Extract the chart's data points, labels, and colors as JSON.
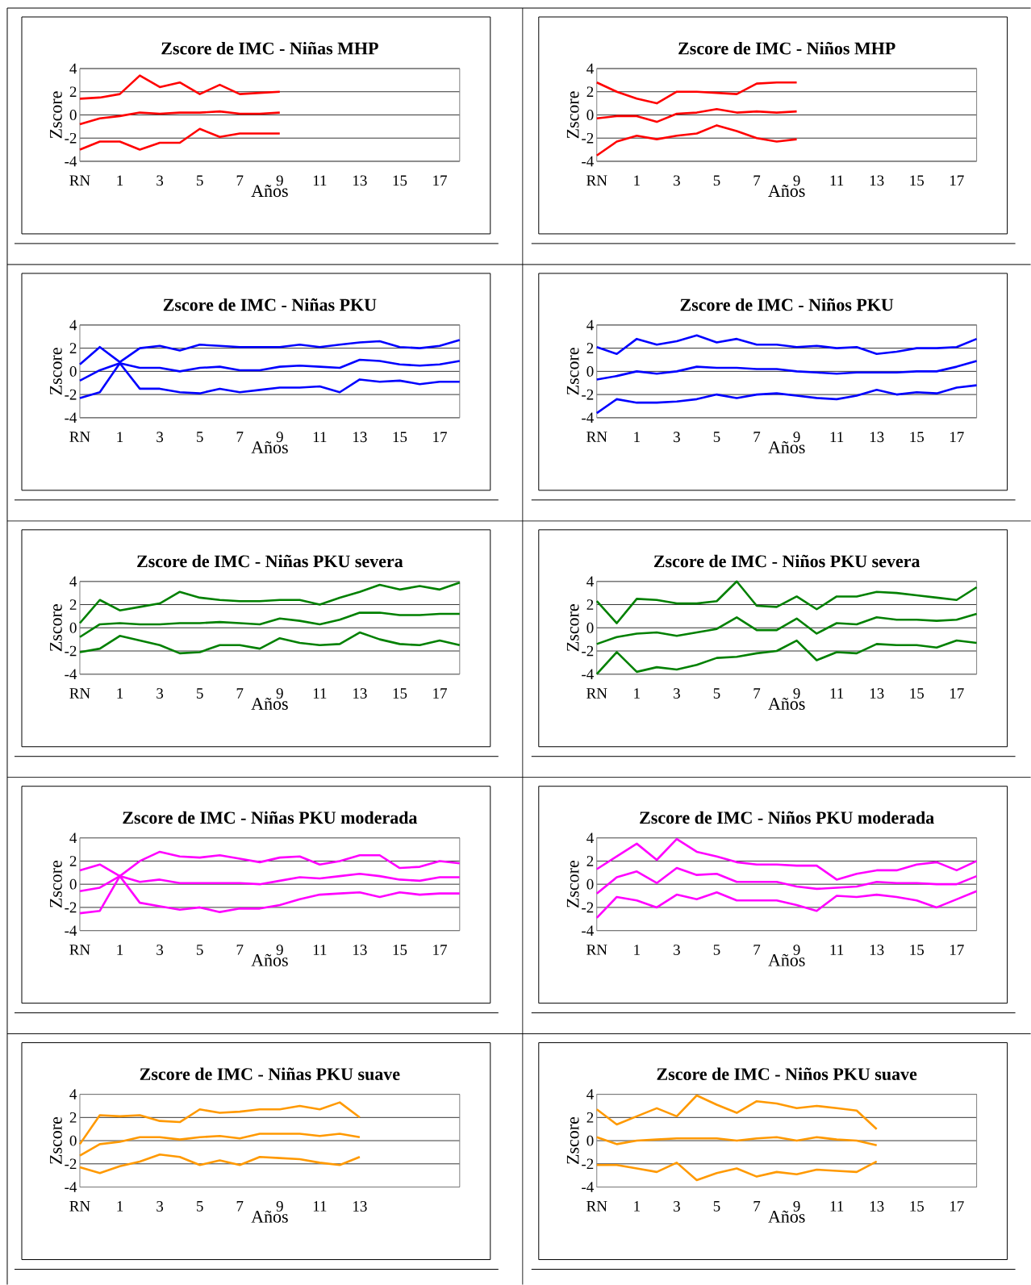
{
  "chart_data": [
    {
      "type": "line",
      "title": "Zscore de IMC - Niñas MHP",
      "xlabel": "Años",
      "ylabel": "Zscore",
      "categories": [
        "RN",
        null,
        "1",
        null,
        "3",
        null,
        "5",
        null,
        "7",
        null,
        "9",
        null,
        "11",
        null,
        "13",
        null,
        "15",
        null,
        "17",
        null
      ],
      "ylim": [
        -4,
        4
      ],
      "yticks": [
        -4,
        -2,
        0,
        2,
        4
      ],
      "grid": "y",
      "marker": "none",
      "line_style": "solid",
      "series": [
        {
          "color": "#ff0000",
          "values": [
            1.4,
            1.5,
            1.8,
            3.4,
            2.4,
            2.8,
            1.8,
            2.6,
            1.8,
            1.9,
            2.0,
            null,
            null,
            null,
            null,
            null,
            null,
            null,
            null,
            null
          ]
        },
        {
          "color": "#ff0000",
          "values": [
            -0.8,
            -0.3,
            -0.1,
            0.2,
            0.1,
            0.2,
            0.2,
            0.3,
            0.1,
            0.1,
            0.2,
            null,
            null,
            null,
            null,
            null,
            null,
            null,
            null,
            null
          ]
        },
        {
          "color": "#ff0000",
          "values": [
            -3.0,
            -2.3,
            -2.3,
            -3.0,
            -2.4,
            -2.4,
            -1.2,
            -1.9,
            -1.6,
            -1.6,
            -1.6,
            null,
            null,
            null,
            null,
            null,
            null,
            null,
            null,
            null
          ]
        }
      ]
    },
    {
      "type": "line",
      "title": "Zscore de IMC - Niños MHP",
      "xlabel": "Años",
      "ylabel": "Zscore",
      "categories": [
        "RN",
        null,
        "1",
        null,
        "3",
        null,
        "5",
        null,
        "7",
        null,
        "9",
        null,
        "11",
        null,
        "13",
        null,
        "15",
        null,
        "17",
        null
      ],
      "ylim": [
        -4,
        4
      ],
      "yticks": [
        -4,
        -2,
        0,
        2,
        4
      ],
      "grid": "y",
      "marker": "none",
      "line_style": "solid",
      "series": [
        {
          "color": "#ff0000",
          "values": [
            2.8,
            2.0,
            1.4,
            1.0,
            2.0,
            2.0,
            1.9,
            1.8,
            2.7,
            2.8,
            2.8,
            null,
            null,
            null,
            null,
            null,
            null,
            null,
            null,
            null
          ]
        },
        {
          "color": "#ff0000",
          "values": [
            -0.3,
            -0.1,
            -0.1,
            -0.6,
            0.1,
            0.2,
            0.5,
            0.2,
            0.3,
            0.2,
            0.3,
            null,
            null,
            null,
            null,
            null,
            null,
            null,
            null,
            null
          ]
        },
        {
          "color": "#ff0000",
          "values": [
            -3.5,
            -2.3,
            -1.8,
            -2.1,
            -1.8,
            -1.6,
            -0.9,
            -1.4,
            -2.0,
            -2.3,
            -2.1,
            null,
            null,
            null,
            null,
            null,
            null,
            null,
            null,
            null
          ]
        }
      ]
    },
    {
      "type": "line",
      "title": "Zscore de IMC - Niñas PKU",
      "xlabel": "Años",
      "ylabel": "Zscore",
      "categories": [
        "RN",
        null,
        "1",
        null,
        "3",
        null,
        "5",
        null,
        "7",
        null,
        "9",
        null,
        "11",
        null,
        "13",
        null,
        "15",
        null,
        "17",
        null
      ],
      "ylim": [
        -4,
        4
      ],
      "yticks": [
        -4,
        -2,
        0,
        2,
        4
      ],
      "grid": "y",
      "marker": "none",
      "line_style": "solid",
      "series": [
        {
          "color": "#0000ff",
          "values": [
            0.6,
            2.1,
            0.8,
            2.0,
            2.2,
            1.8,
            2.3,
            2.2,
            2.1,
            2.1,
            2.1,
            2.3,
            2.1,
            2.3,
            2.5,
            2.6,
            2.1,
            2.0,
            2.2,
            2.7
          ]
        },
        {
          "color": "#0000ff",
          "values": [
            -0.8,
            0.1,
            0.7,
            0.3,
            0.3,
            0.0,
            0.3,
            0.4,
            0.1,
            0.1,
            0.4,
            0.5,
            0.4,
            0.3,
            1.0,
            0.9,
            0.6,
            0.5,
            0.6,
            0.9
          ]
        },
        {
          "color": "#0000ff",
          "values": [
            -2.3,
            -1.8,
            0.7,
            -1.5,
            -1.5,
            -1.8,
            -1.9,
            -1.5,
            -1.8,
            -1.6,
            -1.4,
            -1.4,
            -1.3,
            -1.8,
            -0.7,
            -0.9,
            -0.8,
            -1.1,
            -0.9,
            -0.9
          ]
        }
      ]
    },
    {
      "type": "line",
      "title": "Zscore de IMC - Niños PKU",
      "xlabel": "Años",
      "ylabel": "Zscore",
      "categories": [
        "RN",
        null,
        "1",
        null,
        "3",
        null,
        "5",
        null,
        "7",
        null,
        "9",
        null,
        "11",
        null,
        "13",
        null,
        "15",
        null,
        "17",
        null
      ],
      "ylim": [
        -4,
        4
      ],
      "yticks": [
        -4,
        -2,
        0,
        2,
        4
      ],
      "grid": "y",
      "marker": "none",
      "line_style": "solid",
      "series": [
        {
          "color": "#0000ff",
          "values": [
            2.1,
            1.5,
            2.8,
            2.3,
            2.6,
            3.1,
            2.5,
            2.8,
            2.3,
            2.3,
            2.1,
            2.2,
            2.0,
            2.1,
            1.5,
            1.7,
            2.0,
            2.0,
            2.1,
            2.8
          ]
        },
        {
          "color": "#0000ff",
          "values": [
            -0.7,
            -0.4,
            0.0,
            -0.2,
            0.0,
            0.4,
            0.3,
            0.3,
            0.2,
            0.2,
            0.0,
            -0.1,
            -0.2,
            -0.1,
            -0.1,
            -0.1,
            0.0,
            0.0,
            0.4,
            0.9
          ]
        },
        {
          "color": "#0000ff",
          "values": [
            -3.6,
            -2.4,
            -2.7,
            -2.7,
            -2.6,
            -2.4,
            -2.0,
            -2.3,
            -2.0,
            -1.9,
            -2.1,
            -2.3,
            -2.4,
            -2.1,
            -1.6,
            -2.0,
            -1.8,
            -1.9,
            -1.4,
            -1.2
          ]
        }
      ]
    },
    {
      "type": "line",
      "title": "Zscore de IMC - Niñas PKU severa",
      "xlabel": "Años",
      "ylabel": "Zscore",
      "categories": [
        "RN",
        null,
        "1",
        null,
        "3",
        null,
        "5",
        null,
        "7",
        null,
        "9",
        null,
        "11",
        null,
        "13",
        null,
        "15",
        null,
        "17",
        null
      ],
      "ylim": [
        -4,
        4
      ],
      "yticks": [
        -4,
        -2,
        0,
        2,
        4
      ],
      "grid": "y",
      "marker": "none",
      "line_style": "solid",
      "series": [
        {
          "color": "#008000",
          "values": [
            0.4,
            2.4,
            1.5,
            1.8,
            2.1,
            3.1,
            2.6,
            2.4,
            2.3,
            2.3,
            2.4,
            2.4,
            2.0,
            2.6,
            3.1,
            3.7,
            3.3,
            3.6,
            3.3,
            3.9
          ]
        },
        {
          "color": "#008000",
          "values": [
            -0.8,
            0.3,
            0.4,
            0.3,
            0.3,
            0.4,
            0.4,
            0.5,
            0.4,
            0.3,
            0.8,
            0.6,
            0.3,
            0.7,
            1.3,
            1.3,
            1.1,
            1.1,
            1.2,
            1.2
          ]
        },
        {
          "color": "#008000",
          "values": [
            -2.1,
            -1.8,
            -0.7,
            -1.1,
            -1.5,
            -2.2,
            -2.1,
            -1.5,
            -1.5,
            -1.8,
            -0.9,
            -1.3,
            -1.5,
            -1.4,
            -0.4,
            -1.0,
            -1.4,
            -1.5,
            -1.1,
            -1.5
          ]
        }
      ]
    },
    {
      "type": "line",
      "title": "Zscore de IMC - Niños PKU severa",
      "xlabel": "Años",
      "ylabel": "Zscore",
      "categories": [
        "RN",
        null,
        "1",
        null,
        "3",
        null,
        "5",
        null,
        "7",
        null,
        "9",
        null,
        "11",
        null,
        "13",
        null,
        "15",
        null,
        "17",
        null
      ],
      "ylim": [
        -4,
        4
      ],
      "yticks": [
        -4,
        -2,
        0,
        2,
        4
      ],
      "grid": "y",
      "marker": "none",
      "line_style": "solid",
      "series": [
        {
          "color": "#008000",
          "values": [
            2.3,
            0.4,
            2.5,
            2.4,
            2.1,
            2.1,
            2.3,
            4.0,
            1.9,
            1.8,
            2.7,
            1.6,
            2.7,
            2.7,
            3.1,
            3.0,
            2.8,
            2.6,
            2.4,
            3.5
          ]
        },
        {
          "color": "#008000",
          "values": [
            -1.4,
            -0.8,
            -0.5,
            -0.4,
            -0.7,
            -0.4,
            -0.1,
            0.9,
            -0.2,
            -0.2,
            0.8,
            -0.5,
            0.4,
            0.3,
            0.9,
            0.7,
            0.7,
            0.6,
            0.7,
            1.2
          ]
        },
        {
          "color": "#008000",
          "values": [
            -4.0,
            -2.1,
            -3.8,
            -3.4,
            -3.6,
            -3.2,
            -2.6,
            -2.5,
            -2.2,
            -2.0,
            -1.1,
            -2.8,
            -2.1,
            -2.2,
            -1.4,
            -1.5,
            -1.5,
            -1.7,
            -1.1,
            -1.3
          ]
        }
      ]
    },
    {
      "type": "line",
      "title": "Zscore de IMC - Niñas PKU moderada",
      "xlabel": "Años",
      "ylabel": "Zscore",
      "categories": [
        "RN",
        null,
        "1",
        null,
        "3",
        null,
        "5",
        null,
        "7",
        null,
        "9",
        null,
        "11",
        null,
        "13",
        null,
        "15",
        null,
        "17",
        null
      ],
      "ylim": [
        -4,
        4
      ],
      "yticks": [
        -4,
        -2,
        0,
        2,
        4
      ],
      "grid": "y",
      "marker": "none",
      "line_style": "solid",
      "series": [
        {
          "color": "#ff00ff",
          "values": [
            1.2,
            1.7,
            0.7,
            2.0,
            2.8,
            2.4,
            2.3,
            2.5,
            2.2,
            1.9,
            2.3,
            2.4,
            1.7,
            2.0,
            2.5,
            2.5,
            1.4,
            1.5,
            2.0,
            1.8
          ]
        },
        {
          "color": "#ff00ff",
          "values": [
            -0.6,
            -0.3,
            0.7,
            0.2,
            0.4,
            0.1,
            0.1,
            0.1,
            0.1,
            0.0,
            0.3,
            0.6,
            0.5,
            0.7,
            0.9,
            0.7,
            0.4,
            0.3,
            0.6,
            0.6
          ]
        },
        {
          "color": "#ff00ff",
          "values": [
            -2.5,
            -2.3,
            0.7,
            -1.6,
            -1.9,
            -2.2,
            -2.0,
            -2.4,
            -2.1,
            -2.1,
            -1.8,
            -1.3,
            -0.9,
            -0.8,
            -0.7,
            -1.1,
            -0.7,
            -0.9,
            -0.8,
            -0.8
          ]
        }
      ]
    },
    {
      "type": "line",
      "title": "Zscore de IMC - Niños PKU moderada",
      "xlabel": "Años",
      "ylabel": "Zscore",
      "categories": [
        "RN",
        null,
        "1",
        null,
        "3",
        null,
        "5",
        null,
        "7",
        null,
        "9",
        null,
        "11",
        null,
        "13",
        null,
        "15",
        null,
        "17",
        null
      ],
      "ylim": [
        -4,
        4
      ],
      "yticks": [
        -4,
        -2,
        0,
        2,
        4
      ],
      "grid": "y",
      "marker": "none",
      "line_style": "solid",
      "series": [
        {
          "color": "#ff00ff",
          "values": [
            1.3,
            2.4,
            3.5,
            2.1,
            3.9,
            2.8,
            2.4,
            1.9,
            1.7,
            1.7,
            1.6,
            1.6,
            0.4,
            0.9,
            1.2,
            1.2,
            1.7,
            1.9,
            1.2,
            2.0
          ]
        },
        {
          "color": "#ff00ff",
          "values": [
            -0.8,
            0.6,
            1.1,
            0.1,
            1.4,
            0.8,
            0.9,
            0.2,
            0.2,
            0.2,
            -0.2,
            -0.4,
            -0.3,
            -0.2,
            0.2,
            0.1,
            0.1,
            0.0,
            0.0,
            0.7
          ]
        },
        {
          "color": "#ff00ff",
          "values": [
            -2.9,
            -1.1,
            -1.4,
            -2.0,
            -0.9,
            -1.3,
            -0.7,
            -1.4,
            -1.4,
            -1.4,
            -1.8,
            -2.3,
            -1.0,
            -1.1,
            -0.9,
            -1.1,
            -1.4,
            -2.0,
            -1.3,
            -0.6
          ]
        }
      ]
    },
    {
      "type": "line",
      "title": "Zscore de IMC - Niñas PKU suave",
      "xlabel": "Años",
      "ylabel": "Zscore",
      "categories": [
        "RN",
        null,
        "1",
        null,
        "3",
        null,
        "5",
        null,
        "7",
        null,
        "9",
        null,
        "11",
        null,
        "13",
        null,
        null,
        null,
        null,
        null
      ],
      "ylim": [
        -4,
        4
      ],
      "yticks": [
        -4,
        -2,
        0,
        2,
        4
      ],
      "grid": "y",
      "marker": "none",
      "line_style": "solid",
      "series": [
        {
          "color": "#ff9900",
          "values": [
            -0.3,
            2.2,
            2.1,
            2.2,
            1.7,
            1.6,
            2.7,
            2.4,
            2.5,
            2.7,
            2.7,
            3.0,
            2.7,
            3.3,
            2.0,
            null,
            null,
            null,
            null,
            null
          ]
        },
        {
          "color": "#ff9900",
          "values": [
            -1.3,
            -0.3,
            -0.1,
            0.3,
            0.3,
            0.1,
            0.3,
            0.4,
            0.2,
            0.6,
            0.6,
            0.6,
            0.4,
            0.6,
            0.3,
            null,
            null,
            null,
            null,
            null
          ]
        },
        {
          "color": "#ff9900",
          "values": [
            -2.3,
            -2.8,
            -2.2,
            -1.8,
            -1.2,
            -1.4,
            -2.1,
            -1.7,
            -2.1,
            -1.4,
            -1.5,
            -1.6,
            -1.9,
            -2.1,
            -1.4,
            null,
            null,
            null,
            null,
            null
          ]
        }
      ]
    },
    {
      "type": "line",
      "title": "Zscore de IMC - Niños PKU suave",
      "xlabel": "Años",
      "ylabel": "Zscore",
      "categories": [
        "RN",
        null,
        "1",
        null,
        "3",
        null,
        "5",
        null,
        "7",
        null,
        "9",
        null,
        "11",
        null,
        "13",
        null,
        "15",
        null,
        "17",
        null
      ],
      "ylim": [
        -4,
        4
      ],
      "yticks": [
        -4,
        -2,
        0,
        2,
        4
      ],
      "grid": "y",
      "marker": "none",
      "line_style": "solid",
      "series": [
        {
          "color": "#ff9900",
          "values": [
            2.7,
            1.4,
            2.1,
            2.8,
            2.1,
            3.9,
            3.1,
            2.4,
            3.4,
            3.2,
            2.8,
            3.0,
            2.8,
            2.6,
            1.0,
            null,
            null,
            null,
            null,
            null
          ]
        },
        {
          "color": "#ff9900",
          "values": [
            0.3,
            -0.3,
            0.0,
            0.1,
            0.2,
            0.2,
            0.2,
            0.0,
            0.2,
            0.3,
            0.0,
            0.3,
            0.1,
            0.0,
            -0.4,
            null,
            null,
            null,
            null,
            null
          ]
        },
        {
          "color": "#ff9900",
          "values": [
            -2.1,
            -2.1,
            -2.4,
            -2.7,
            -1.9,
            -3.4,
            -2.8,
            -2.4,
            -3.1,
            -2.7,
            -2.9,
            -2.5,
            -2.6,
            -2.7,
            -1.8,
            null,
            null,
            null,
            null,
            null
          ]
        }
      ]
    }
  ]
}
